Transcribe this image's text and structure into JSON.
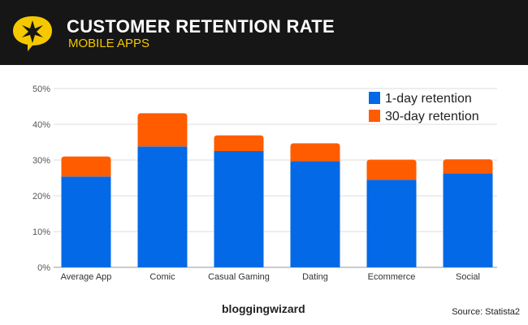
{
  "header": {
    "title": "CUSTOMER RETENTION RATE",
    "subtitle": "MOBILE APPS"
  },
  "footer": {
    "brand": "bloggingwizard",
    "source": "Source: Statista2"
  },
  "chart_data": {
    "type": "bar",
    "stacked": true,
    "title": "CUSTOMER RETENTION RATE",
    "subtitle": "MOBILE APPS",
    "categories": [
      "Average App",
      "Comic",
      "Casual Gaming",
      "Dating",
      "Ecommerce",
      "Social"
    ],
    "series": [
      {
        "name": "1-day retention",
        "color": "#0369e6",
        "values": [
          25.4,
          33.8,
          32.5,
          29.7,
          24.5,
          26.3
        ]
      },
      {
        "name": "30-day retention",
        "color": "#ff5c00",
        "values": [
          5.6,
          9.3,
          4.4,
          5.0,
          5.6,
          3.9
        ]
      }
    ],
    "ylim": [
      0,
      50
    ],
    "yticks": [
      "0%",
      "10%",
      "20%",
      "30%",
      "40%",
      "50%"
    ],
    "grid": true,
    "legend": "top-right",
    "xlabel": "",
    "ylabel": ""
  }
}
